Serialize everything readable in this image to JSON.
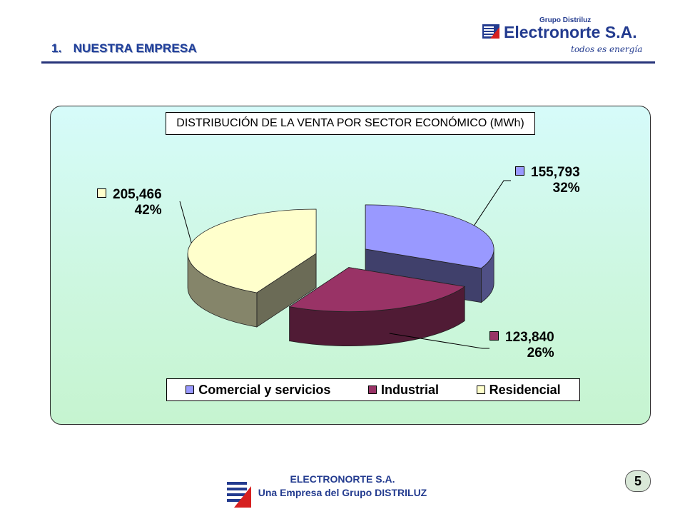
{
  "slide": {
    "section_number": "1.",
    "section_title": "NUESTRA EMPRESA"
  },
  "logo": {
    "group": "Grupo Distriluz",
    "name": "Electronorte S.A.",
    "tagline": "todos es energía"
  },
  "chart_data": {
    "type": "pie",
    "title": "DISTRIBUCIÓN DE LA VENTA POR SECTOR ECONÓMICO (MWh)",
    "categories": [
      "Comercial y servicios",
      "Industrial",
      "Residencial"
    ],
    "values": [
      155793,
      123840,
      205466
    ],
    "value_labels": [
      "155,793",
      "123,840",
      "205,466"
    ],
    "percent_labels": [
      "32%",
      "26%",
      "42%"
    ],
    "exploded": true,
    "three_d": true,
    "legend_position": "bottom",
    "colors": {
      "Comercial y servicios": "#9999ff",
      "Industrial": "#993366",
      "Residencial": "#ffffcc"
    }
  },
  "footer": {
    "company": "ELECTRONORTE S.A.",
    "subtitle": "Una Empresa del Grupo DISTRILUZ",
    "page_number": "5"
  }
}
